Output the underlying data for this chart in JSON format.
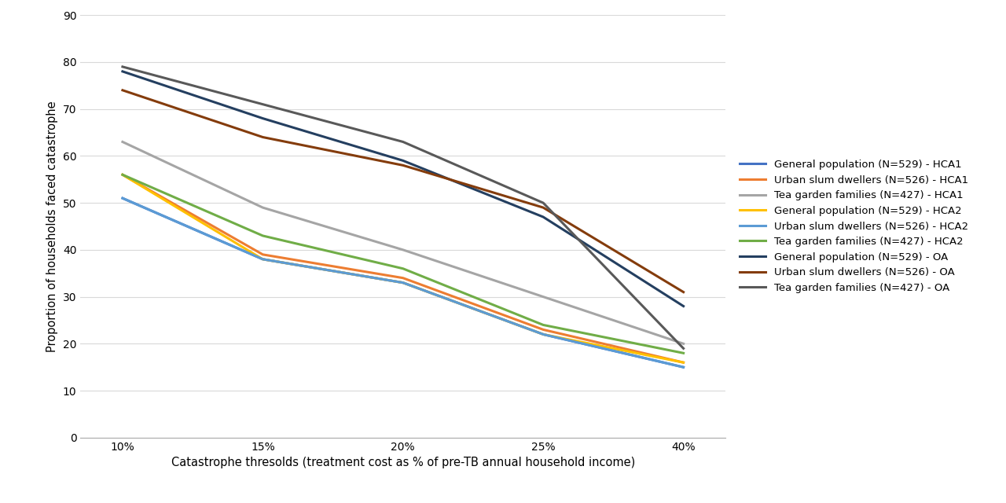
{
  "x_labels": [
    "10%",
    "15%",
    "20%",
    "25%",
    "40%"
  ],
  "x_values": [
    0,
    1,
    2,
    3,
    4
  ],
  "x_tick_labels": [
    "10%",
    "15%",
    "20%",
    "25%",
    "40%"
  ],
  "series": [
    {
      "label": "General population (N=529) - HCA1",
      "color": "#4472C4",
      "values": [
        51,
        38,
        33,
        22,
        15
      ]
    },
    {
      "label": "Urban slum dwellers (N=526) - HCA1",
      "color": "#ED7D31",
      "values": [
        56,
        39,
        34,
        23,
        16
      ]
    },
    {
      "label": "Tea garden families (N=427) - HCA1",
      "color": "#A5A5A5",
      "values": [
        63,
        49,
        40,
        30,
        20
      ]
    },
    {
      "label": "General population (N=529) - HCA2",
      "color": "#FFC000",
      "values": [
        56,
        38,
        33,
        22,
        16
      ]
    },
    {
      "label": "Urban slum dwellers (N=526) - HCA2",
      "color": "#5B9BD5",
      "values": [
        51,
        38,
        33,
        22,
        15
      ]
    },
    {
      "label": "Tea garden families (N=427) - HCA2",
      "color": "#70AD47",
      "values": [
        56,
        43,
        36,
        24,
        18
      ]
    },
    {
      "label": "General population (N=529) - OA",
      "color": "#243F60",
      "values": [
        78,
        68,
        59,
        47,
        28
      ]
    },
    {
      "label": "Urban slum dwellers (N=526) - OA",
      "color": "#843C0C",
      "values": [
        74,
        64,
        58,
        49,
        31
      ]
    },
    {
      "label": "Tea garden families (N=427) - OA",
      "color": "#595959",
      "values": [
        79,
        71,
        63,
        50,
        19
      ]
    }
  ],
  "ylabel": "Proportion of households faced catastrophe",
  "xlabel": "Catastrophe thresolds (treatment cost as % of pre-TB annual household income)",
  "ylim": [
    0,
    90
  ],
  "yticks": [
    0,
    10,
    20,
    30,
    40,
    50,
    60,
    70,
    80,
    90
  ],
  "grid_color": "#D9D9D9",
  "background_color": "#FFFFFF",
  "legend_fontsize": 9.5,
  "axis_fontsize": 10.5,
  "tick_fontsize": 10
}
